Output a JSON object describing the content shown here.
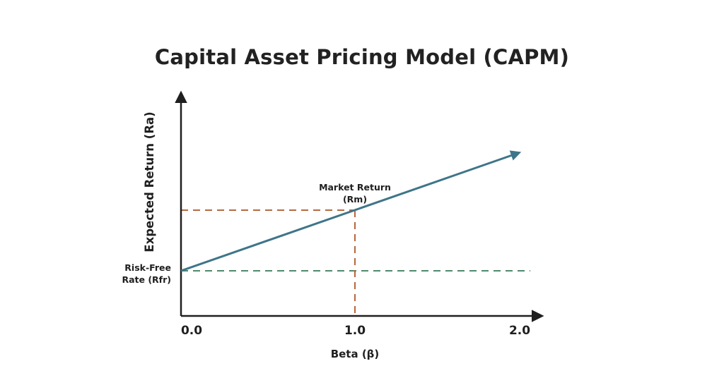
{
  "title": "Capital Asset Pricing Model (CAPM)",
  "y_axis_label": "Expected Return (Ra)",
  "x_axis_label": "Beta (β)",
  "x_ticks": [
    "0.0",
    "1.0",
    "2.0"
  ],
  "market_return_label": [
    "Market Return",
    "(Rm)"
  ],
  "risk_free_label": [
    "Risk-Free",
    "Rate (Rfr)"
  ],
  "colors": {
    "axis": "#1f1f1f",
    "sml_line": "#3f7589",
    "market_guides": "#b5683f",
    "risk_free_guide": "#4f8a6c",
    "text": "#1f1f1f"
  }
}
